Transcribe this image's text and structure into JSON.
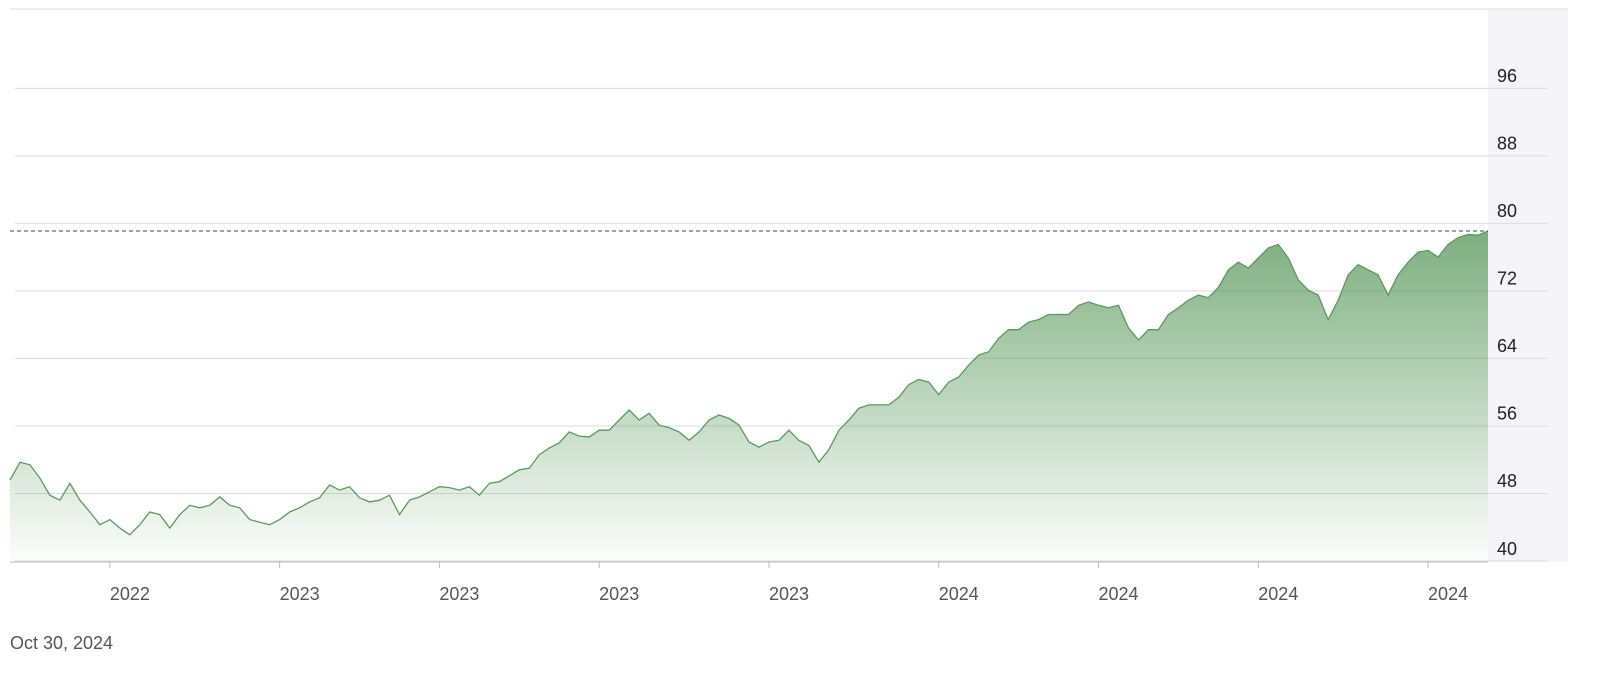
{
  "chart_data": {
    "type": "area",
    "date": "Oct 30, 2024",
    "color": "#5b9a5e",
    "price_line": 79.1,
    "ylim": [
      40,
      105.4
    ],
    "yticks": [
      40,
      48,
      56,
      64,
      72,
      80,
      88,
      96
    ],
    "grid": true,
    "categories": [
      null,
      null,
      null,
      null,
      null,
      null,
      null,
      null,
      null,
      null,
      "2022",
      null,
      null,
      null,
      null,
      null,
      null,
      null,
      null,
      null,
      null,
      null,
      null,
      null,
      null,
      null,
      null,
      "2023",
      null,
      null,
      null,
      null,
      null,
      null,
      null,
      null,
      null,
      null,
      null,
      null,
      null,
      null,
      null,
      "2023",
      null,
      null,
      null,
      null,
      null,
      null,
      null,
      null,
      null,
      null,
      null,
      null,
      null,
      null,
      null,
      "2023",
      null,
      null,
      null,
      null,
      null,
      null,
      null,
      null,
      null,
      null,
      null,
      null,
      null,
      null,
      null,
      null,
      "2023",
      null,
      null,
      null,
      null,
      null,
      null,
      null,
      null,
      null,
      null,
      null,
      null,
      null,
      null,
      null,
      null,
      "2024",
      null,
      null,
      null,
      null,
      null,
      null,
      null,
      null,
      null,
      null,
      null,
      null,
      null,
      null,
      null,
      "2024",
      null,
      null,
      null,
      null,
      null,
      null,
      null,
      null,
      null,
      null,
      null,
      null,
      null,
      null,
      null,
      "2024",
      null,
      null,
      null,
      null,
      null,
      null,
      null,
      null,
      null,
      null,
      null,
      null,
      null,
      null,
      null,
      null,
      "2024",
      null,
      null,
      null,
      null,
      null,
      null
    ],
    "values": [
      49.6,
      51.7,
      51.4,
      49.8,
      47.8,
      47.2,
      49.2,
      47.2,
      45.8,
      44.3,
      44.9,
      43.9,
      43.1,
      44.3,
      45.8,
      45.5,
      43.9,
      45.5,
      46.6,
      46.3,
      46.6,
      47.6,
      46.6,
      46.3,
      44.9,
      44.6,
      44.3,
      44.9,
      45.8,
      46.3,
      47.0,
      47.5,
      49.0,
      48.4,
      48.8,
      47.5,
      47.0,
      47.2,
      47.8,
      45.5,
      47.2,
      47.6,
      48.2,
      48.8,
      48.7,
      48.4,
      48.8,
      47.8,
      49.2,
      49.4,
      50.1,
      50.8,
      51.0,
      52.6,
      53.4,
      54.0,
      55.3,
      54.8,
      54.7,
      55.5,
      55.5,
      56.7,
      57.9,
      56.7,
      57.5,
      56.1,
      55.8,
      55.3,
      54.3,
      55.3,
      56.7,
      57.3,
      56.9,
      56.1,
      54.1,
      53.5,
      54.1,
      54.3,
      55.5,
      54.3,
      53.7,
      51.7,
      53.2,
      55.5,
      56.7,
      58.1,
      58.5,
      58.5,
      58.5,
      59.4,
      60.9,
      61.5,
      61.2,
      59.7,
      61.2,
      61.8,
      63.2,
      64.4,
      64.8,
      66.4,
      67.4,
      67.4,
      68.3,
      68.6,
      69.2,
      69.2,
      69.2,
      70.3,
      70.7,
      70.3,
      70.0,
      70.3,
      67.6,
      66.2,
      67.4,
      67.4,
      69.2,
      70.0,
      70.9,
      71.5,
      71.2,
      72.4,
      74.5,
      75.4,
      74.7,
      75.9,
      77.1,
      77.5,
      75.9,
      73.3,
      72.1,
      71.5,
      68.6,
      70.9,
      73.9,
      75.1,
      74.5,
      73.9,
      71.5,
      73.9,
      75.4,
      76.6,
      76.8,
      76.0,
      77.5,
      78.3,
      78.7,
      78.6,
      79.1
    ]
  }
}
